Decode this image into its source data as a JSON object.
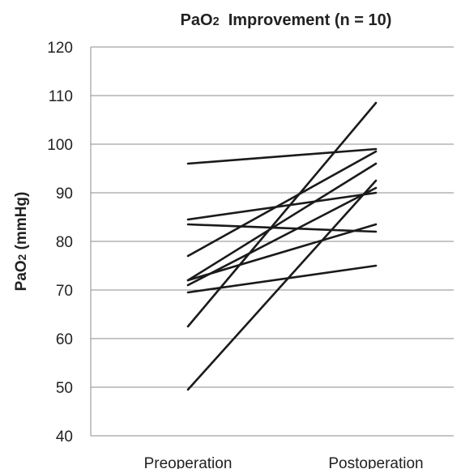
{
  "chart_data": {
    "type": "line",
    "title": "PaO2  Improvement (n = 10)",
    "ylabel": "PaO2 (mmHg)",
    "xlabel": "",
    "categories": [
      "Preoperation",
      "Postoperation"
    ],
    "ylim": [
      40,
      120
    ],
    "yticks": [
      40,
      50,
      60,
      70,
      80,
      90,
      100,
      110,
      120
    ],
    "grid": true,
    "series": [
      {
        "values": [
          96,
          99
        ]
      },
      {
        "values": [
          84.5,
          90
        ]
      },
      {
        "values": [
          83.5,
          82
        ]
      },
      {
        "values": [
          77,
          98.5
        ]
      },
      {
        "values": [
          72,
          83.5
        ]
      },
      {
        "values": [
          71,
          91
        ]
      },
      {
        "values": [
          72,
          96
        ]
      },
      {
        "values": [
          69.5,
          75
        ]
      },
      {
        "values": [
          62.5,
          108.5
        ]
      },
      {
        "values": [
          49.5,
          92.5
        ]
      }
    ]
  }
}
